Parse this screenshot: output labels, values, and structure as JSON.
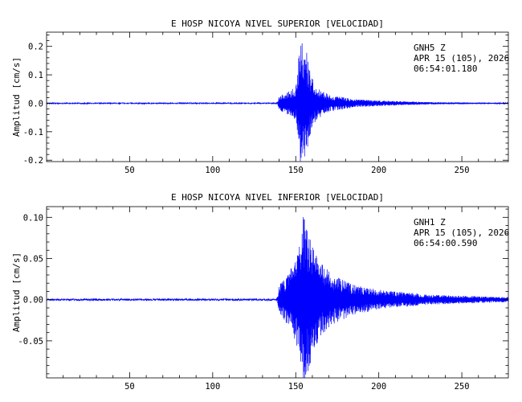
{
  "chart_data": [
    {
      "type": "line",
      "title": "E HOSP NICOYA NIVEL SUPERIOR [VELOCIDAD]",
      "ylabel": "Amplitud [cm/s]",
      "xlabel": "",
      "xlim": [
        0,
        278
      ],
      "ylim": [
        -0.205,
        0.25
      ],
      "xticks": [
        50,
        100,
        150,
        200,
        250
      ],
      "yticks": [
        0.2,
        0.1,
        0.0,
        -0.1,
        -0.2
      ],
      "ytick_labels": [
        "0.2",
        "0.1",
        "0.0",
        "-0.1",
        "-0.2"
      ],
      "annotation": [
        "GNH5   Z",
        "APR 15 (105), 2026",
        "06:54:01.180"
      ],
      "series": [
        {
          "color": "#0000ff",
          "envelope": [
            [
              0,
              0.002
            ],
            [
              138,
              0.002
            ],
            [
              139,
              0.004
            ],
            [
              140,
              0.025
            ],
            [
              145,
              0.04
            ],
            [
              150,
              0.06
            ],
            [
              152,
              0.19
            ],
            [
              154,
              0.235
            ],
            [
              156,
              0.2
            ],
            [
              158,
              0.13
            ],
            [
              162,
              0.06
            ],
            [
              170,
              0.03
            ],
            [
              185,
              0.015
            ],
            [
              200,
              0.01
            ],
            [
              230,
              0.004
            ],
            [
              278,
              0.002
            ]
          ]
        }
      ]
    },
    {
      "type": "line",
      "title": "E HOSP NICOYA NIVEL INFERIOR [VELOCIDAD]",
      "ylabel": "Amplitud [cm/s]",
      "xlabel": "",
      "xlim": [
        0,
        278
      ],
      "ylim": [
        -0.095,
        0.113
      ],
      "xticks": [
        50,
        100,
        150,
        200,
        250
      ],
      "yticks": [
        0.1,
        0.05,
        0.0,
        -0.05
      ],
      "ytick_labels": [
        "0.10",
        "0.05",
        "0.00",
        "-0.05"
      ],
      "annotation": [
        "GNH1   Z",
        "APR 15 (105), 2026",
        "06:54:00.590"
      ],
      "series": [
        {
          "color": "#0000ff",
          "envelope": [
            [
              0,
              0.001
            ],
            [
              138,
              0.0012
            ],
            [
              139,
              0.004
            ],
            [
              140,
              0.018
            ],
            [
              145,
              0.03
            ],
            [
              150,
              0.05
            ],
            [
              153,
              0.09
            ],
            [
              155,
              0.105
            ],
            [
              158,
              0.085
            ],
            [
              161,
              0.06
            ],
            [
              165,
              0.045
            ],
            [
              172,
              0.03
            ],
            [
              185,
              0.018
            ],
            [
              200,
              0.012
            ],
            [
              230,
              0.006
            ],
            [
              278,
              0.003
            ]
          ]
        }
      ]
    }
  ]
}
